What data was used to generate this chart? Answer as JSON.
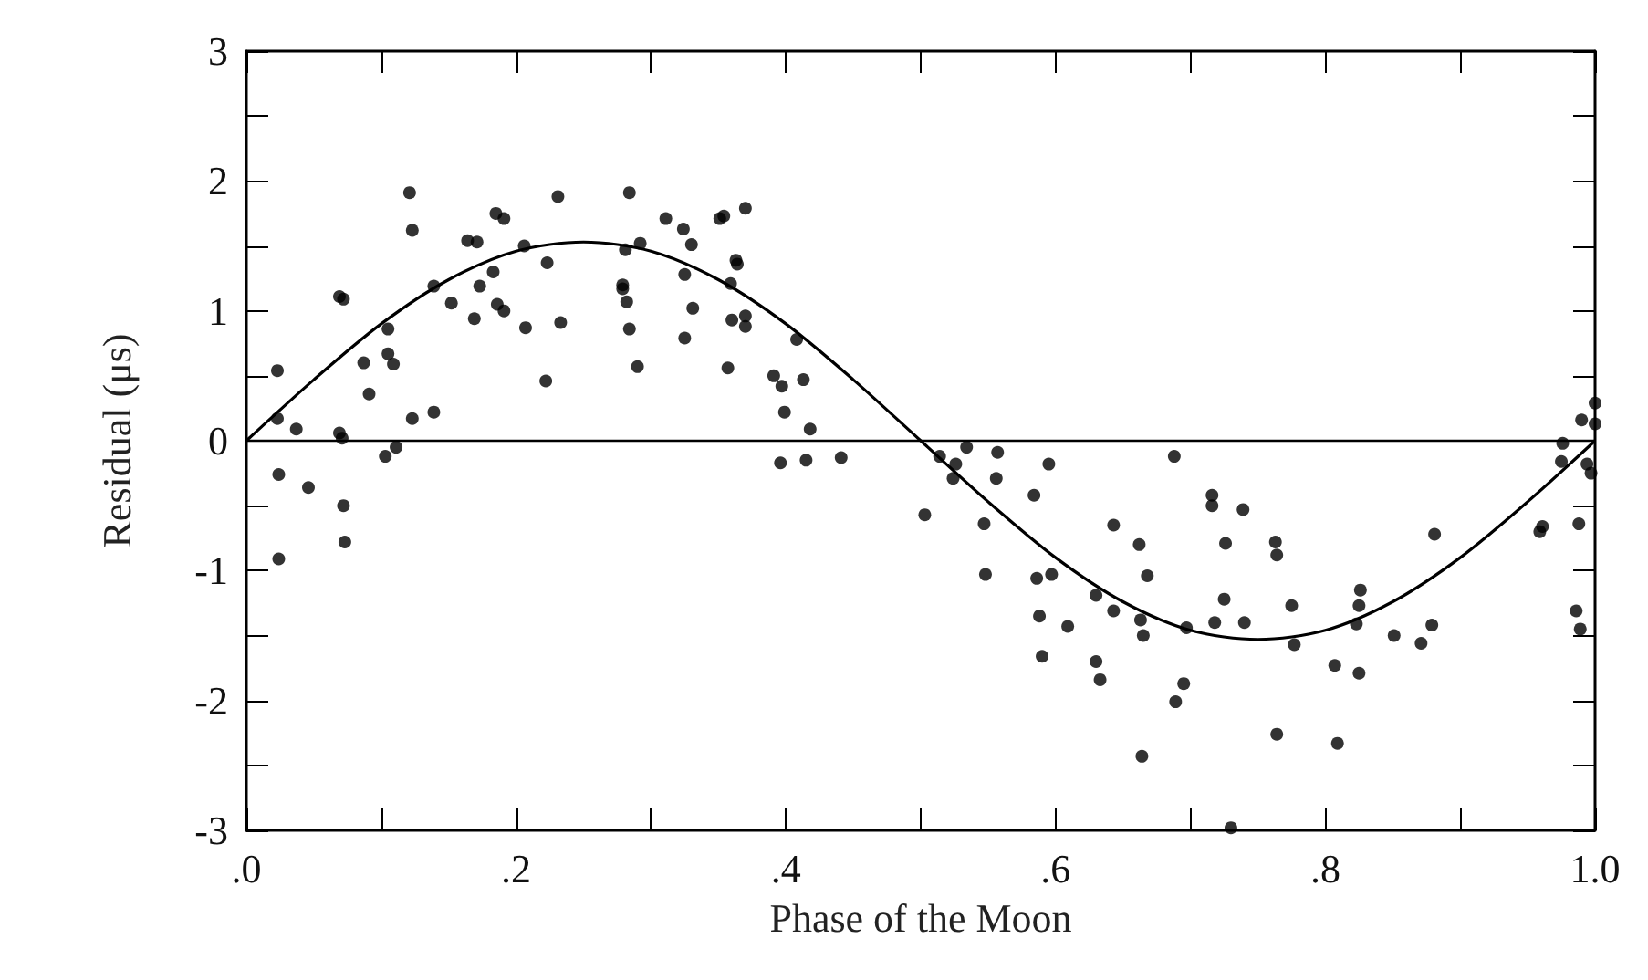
{
  "chart_data": {
    "type": "scatter",
    "xlabel": "Phase of the Moon",
    "ylabel": "Residual (μs)",
    "xlim": [
      0,
      1
    ],
    "ylim": [
      -3,
      3
    ],
    "xticks": [
      {
        "value": 0,
        "label": ".0"
      },
      {
        "value": 0.1,
        "label": null
      },
      {
        "value": 0.2,
        "label": ".2"
      },
      {
        "value": 0.3,
        "label": null
      },
      {
        "value": 0.4,
        "label": ".4"
      },
      {
        "value": 0.5,
        "label": null
      },
      {
        "value": 0.6,
        "label": ".6"
      },
      {
        "value": 0.7,
        "label": null
      },
      {
        "value": 0.8,
        "label": ".8"
      },
      {
        "value": 0.9,
        "label": null
      },
      {
        "value": 1,
        "label": "1.0"
      }
    ],
    "yticks": [
      -3,
      {
        "value": -2.5,
        "label": null
      },
      -2,
      {
        "value": -1.5,
        "label": null
      },
      -1,
      {
        "value": -0.5,
        "label": null
      },
      0,
      {
        "value": 0.5,
        "label": null
      },
      1,
      {
        "value": 1.5,
        "label": null
      },
      2,
      {
        "value": 2.5,
        "label": null
      },
      3
    ],
    "grid": false,
    "marker": "circle",
    "ref_lines": [
      {
        "axis": "y",
        "value": 0,
        "color": "#000000"
      }
    ],
    "series": [
      {
        "color": "#000000",
        "x": [
          0.023,
          0.023,
          0.024,
          0.024,
          0.037,
          0.046,
          0.069,
          0.072,
          0.069,
          0.071,
          0.072,
          0.073,
          0.087,
          0.091,
          0.103,
          0.105,
          0.105,
          0.109,
          0.111,
          0.121,
          0.123,
          0.123,
          0.139,
          0.139,
          0.152,
          0.164,
          0.171,
          0.169,
          0.173,
          0.183,
          0.185,
          0.191,
          0.186,
          0.191,
          0.206,
          0.207,
          0.222,
          0.223,
          0.231,
          0.233,
          0.279,
          0.279,
          0.282,
          0.281,
          0.284,
          0.284,
          0.29,
          0.292,
          0.311,
          0.324,
          0.325,
          0.325,
          0.33,
          0.331,
          0.351,
          0.354,
          0.357,
          0.359,
          0.36,
          0.363,
          0.364,
          0.37,
          0.37,
          0.37,
          0.391,
          0.397,
          0.399,
          0.396,
          0.408,
          0.413,
          0.415,
          0.418,
          0.441,
          0.503,
          0.514,
          0.524,
          0.526,
          0.534,
          0.547,
          0.548,
          0.556,
          0.557,
          0.584,
          0.586,
          0.588,
          0.59,
          0.595,
          0.597,
          0.609,
          0.63,
          0.63,
          0.633,
          0.643,
          0.643,
          0.662,
          0.663,
          0.665,
          0.664,
          0.668,
          0.688,
          0.689,
          0.695,
          0.697,
          0.716,
          0.716,
          0.718,
          0.726,
          0.725,
          0.73,
          0.739,
          0.74,
          0.763,
          0.764,
          0.764,
          0.775,
          0.777,
          0.807,
          0.809,
          0.823,
          0.825,
          0.826,
          0.825,
          0.851,
          0.871,
          0.879,
          0.881,
          0.959,
          0.961,
          0.975,
          0.976,
          0.986,
          0.988,
          0.989,
          0.99,
          0.994,
          0.997,
          1.0,
          1.0
        ],
        "values": [
          0.54,
          0.17,
          -0.26,
          -0.91,
          0.09,
          -0.36,
          1.11,
          1.09,
          0.06,
          0.02,
          -0.5,
          -0.78,
          0.6,
          0.36,
          -0.12,
          0.86,
          0.67,
          0.59,
          -0.05,
          1.91,
          1.62,
          0.17,
          1.19,
          0.22,
          1.06,
          1.54,
          1.53,
          0.94,
          1.19,
          1.3,
          1.75,
          1.71,
          1.05,
          1.0,
          1.5,
          0.87,
          0.46,
          1.37,
          1.88,
          0.91,
          1.2,
          1.17,
          1.07,
          1.47,
          1.91,
          0.86,
          0.57,
          1.52,
          1.71,
          1.63,
          1.28,
          0.79,
          1.51,
          1.02,
          1.71,
          1.73,
          0.56,
          1.21,
          0.93,
          1.39,
          1.36,
          1.79,
          0.96,
          0.88,
          0.5,
          0.42,
          0.22,
          -0.17,
          0.78,
          0.47,
          -0.15,
          0.09,
          -0.13,
          -0.57,
          -0.12,
          -0.29,
          -0.18,
          -0.05,
          -0.64,
          -1.03,
          -0.29,
          -0.09,
          -0.42,
          -1.06,
          -1.35,
          -1.66,
          -0.18,
          -1.03,
          -1.43,
          -1.19,
          -1.7,
          -1.84,
          -0.65,
          -1.31,
          -0.8,
          -1.38,
          -1.5,
          -2.43,
          -1.04,
          -0.12,
          -2.01,
          -1.87,
          -1.44,
          -0.42,
          -0.5,
          -1.4,
          -0.79,
          -1.22,
          -2.98,
          -0.53,
          -1.4,
          -0.78,
          -0.88,
          -2.26,
          -1.27,
          -1.57,
          -1.73,
          -2.33,
          -1.41,
          -1.27,
          -1.15,
          -1.79,
          -1.5,
          -1.56,
          -1.42,
          -0.72,
          -0.7,
          -0.66,
          -0.16,
          -0.02,
          -1.31,
          -0.64,
          -1.45,
          0.16,
          -0.18,
          -0.25,
          0.13,
          0.29
        ]
      },
      {
        "type": "line",
        "color": "#000000",
        "marker": "none",
        "x": [
          0,
          0.05,
          0.1,
          0.15,
          0.2,
          0.25,
          0.3,
          0.35,
          0.4,
          0.45,
          0.5,
          0.55,
          0.6,
          0.65,
          0.7,
          0.75,
          0.8,
          0.85,
          0.9,
          0.95,
          1
        ],
        "values": [
          0,
          0.47,
          0.9,
          1.24,
          1.46,
          1.53,
          1.46,
          1.24,
          0.9,
          0.47,
          0,
          -0.47,
          -0.9,
          -1.24,
          -1.46,
          -1.53,
          -1.46,
          -1.24,
          -0.9,
          -0.47,
          0
        ]
      }
    ]
  }
}
